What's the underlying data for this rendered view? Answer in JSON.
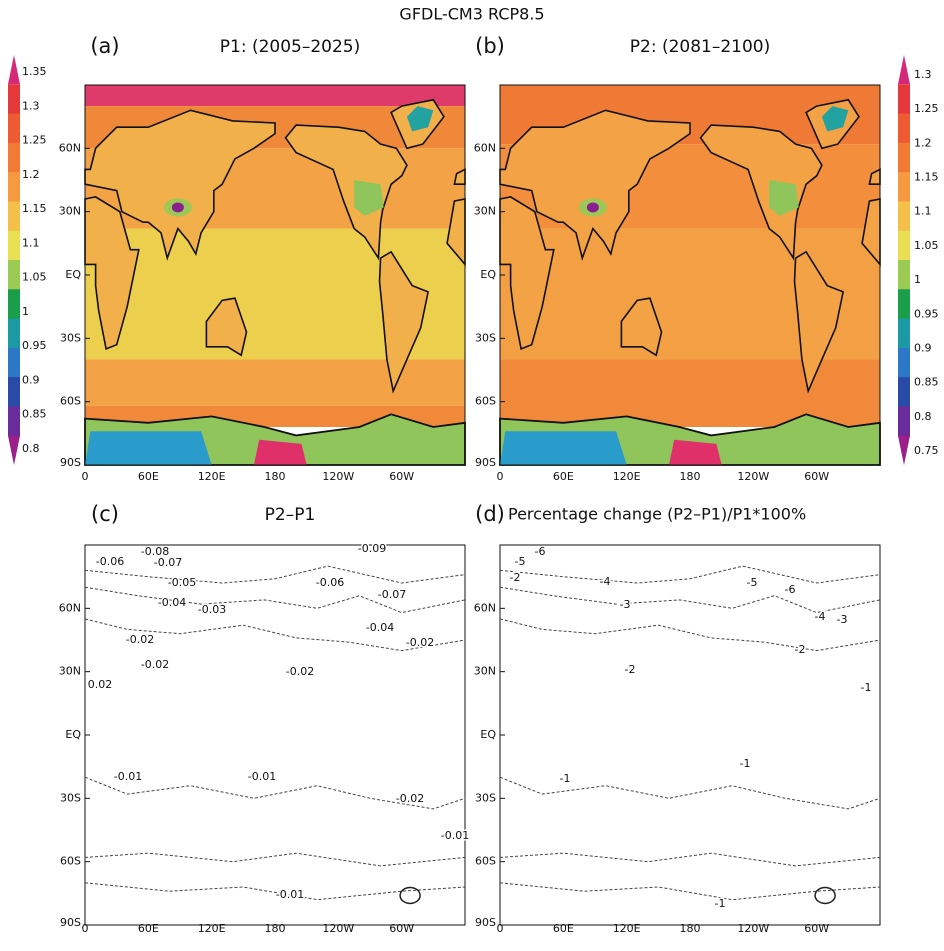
{
  "title": "GFDL-CM3 RCP8.5",
  "panels": [
    {
      "letter": "(a)",
      "title": "P1: (2005–2025)",
      "colorbar_labels": [
        "1.35",
        "1.3",
        "1.25",
        "1.2",
        "1.15",
        "1.1",
        "1.05",
        "1",
        "0.95",
        "0.9",
        "0.85",
        "0.8"
      ]
    },
    {
      "letter": "(b)",
      "title": "P2: (2081–2100)",
      "colorbar_labels": [
        "1.3",
        "1.25",
        "1.2",
        "1.15",
        "1.1",
        "1.05",
        "1",
        "0.95",
        "0.9",
        "0.85",
        "0.8",
        "0.75"
      ]
    },
    {
      "letter": "(c)",
      "title": "P2–P1",
      "contour_labels": [
        "-0.08",
        "-0.06",
        "-0.07",
        "-0.05",
        "-0.04",
        "-0.03",
        "-0.02",
        "-0.02",
        "0.02",
        "-0.02",
        "-0.09",
        "-0.06",
        "-0.07",
        "-0.04",
        "-0.02",
        "-0.01",
        "-0.01",
        "-0.02",
        "-0.01",
        "-0.01"
      ]
    },
    {
      "letter": "(d)",
      "title": "Percentage change (P2–P1)/P1*100%",
      "contour_labels": [
        "-6",
        "-5",
        "-2",
        "-4",
        "-3",
        "-5",
        "-6",
        "-4",
        "-3",
        "-2",
        "-1",
        "-2",
        "-1",
        "-1",
        "-1"
      ]
    }
  ],
  "lat_labels": [
    "60N",
    "30N",
    "EQ",
    "30S",
    "60S",
    "90S"
  ],
  "lon_labels": [
    "0",
    "60E",
    "120E",
    "180",
    "120W",
    "60W"
  ],
  "colorbar_colors": [
    "#d62a78",
    "#e5383b",
    "#ee5a32",
    "#f27a35",
    "#f59a40",
    "#f4c04a",
    "#e8e052",
    "#9ccb54",
    "#1a9e4a",
    "#1c9aa3",
    "#2a78c6",
    "#2a4aa8",
    "#6a2c9a",
    "#9a1f8a"
  ]
}
